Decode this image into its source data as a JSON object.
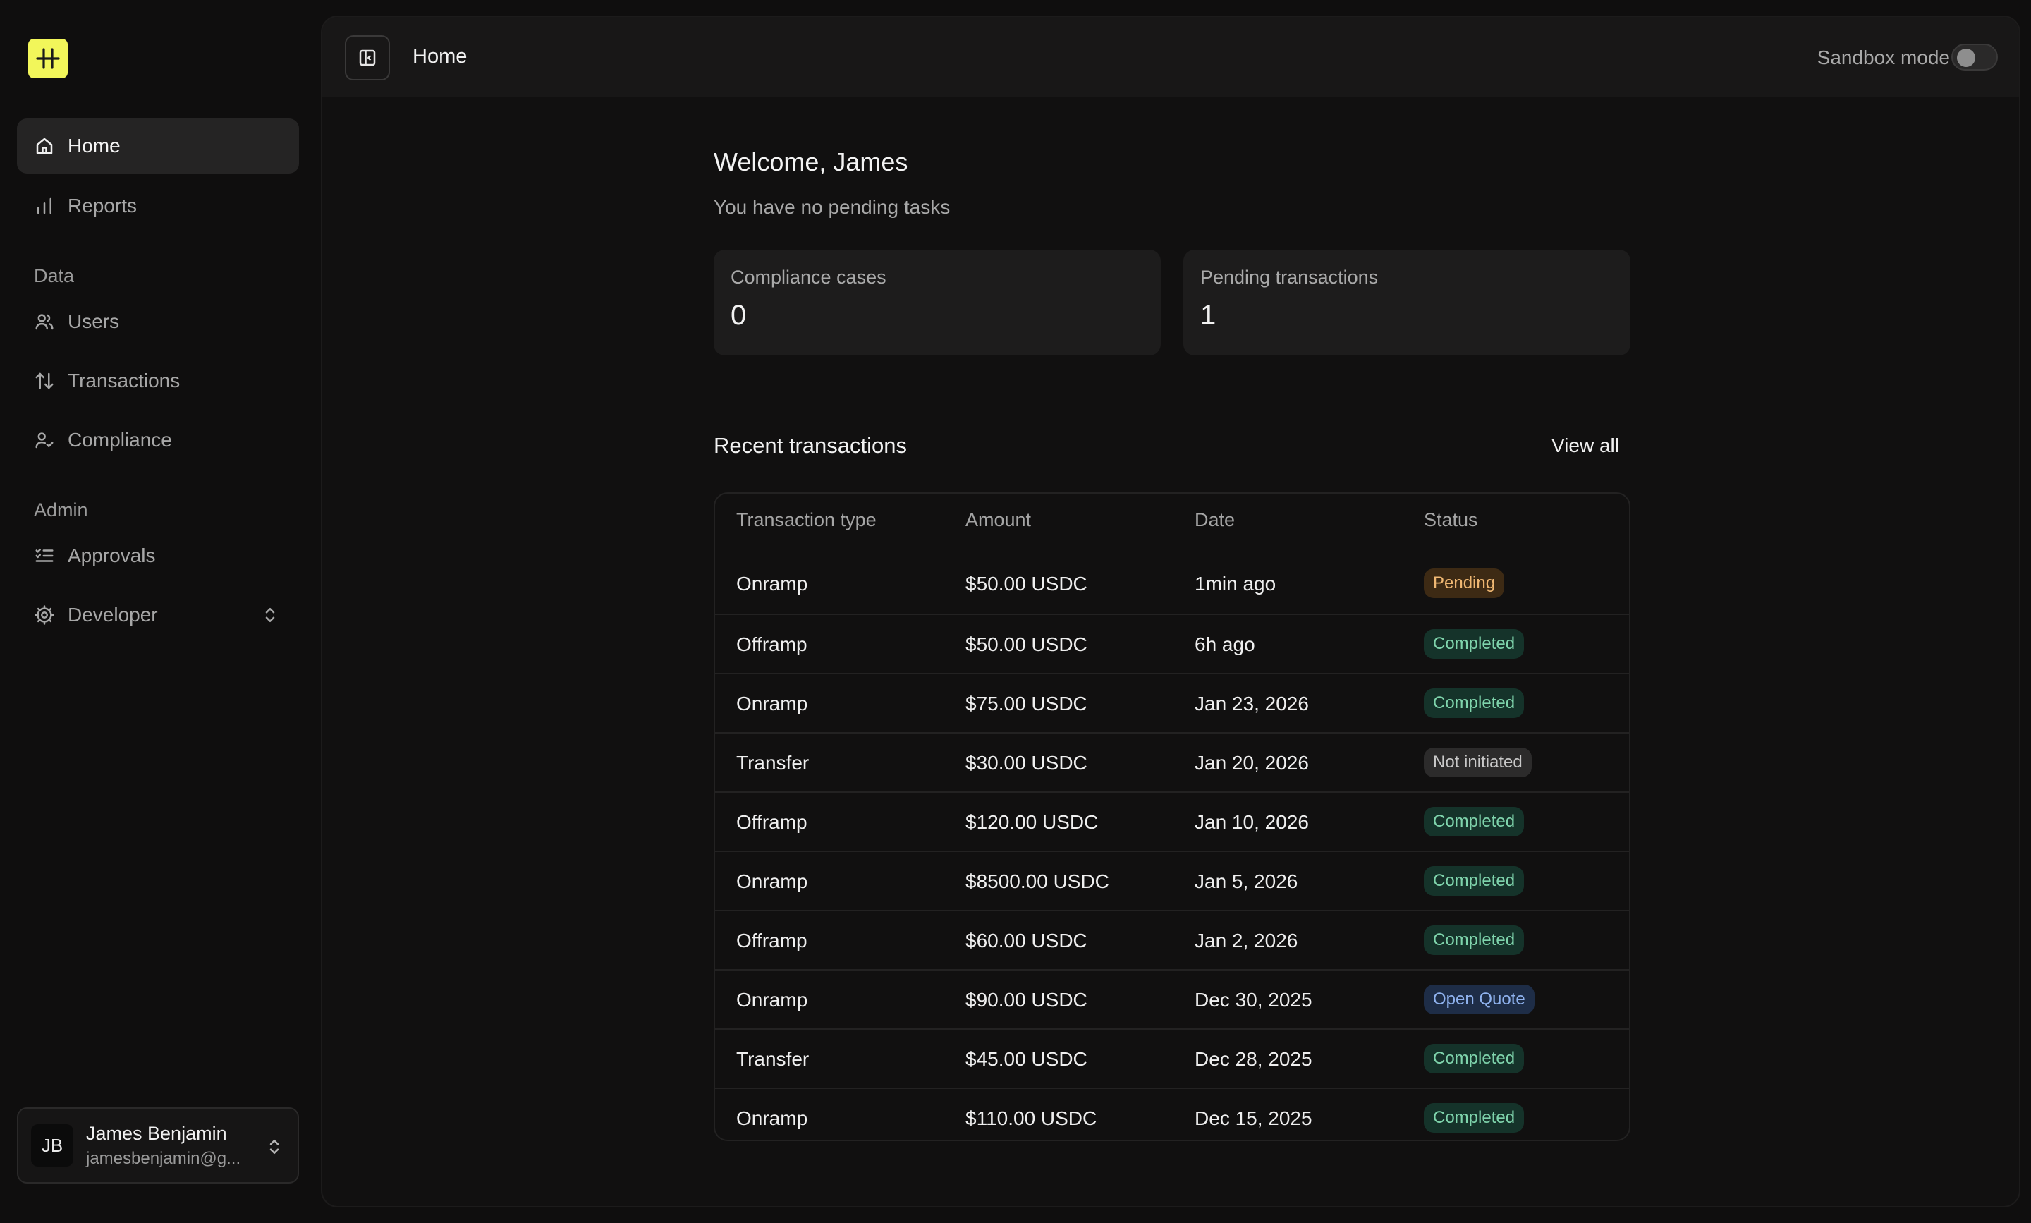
{
  "sidebar": {
    "items": [
      {
        "label": "Home"
      },
      {
        "label": "Reports"
      },
      {
        "label": "Users"
      },
      {
        "label": "Transactions"
      },
      {
        "label": "Compliance"
      },
      {
        "label": "Approvals"
      },
      {
        "label": "Developer"
      }
    ],
    "sections": {
      "data": "Data",
      "admin": "Admin"
    },
    "user": {
      "initials": "JB",
      "name": "James Benjamin",
      "email": "jamesbenjamin@g..."
    }
  },
  "header": {
    "title": "Home",
    "sandbox_label": "Sandbox mode",
    "sandbox_on": false
  },
  "main": {
    "welcome": "Welcome, James",
    "subtext": "You have no pending tasks",
    "stats": [
      {
        "label": "Compliance cases",
        "value": "0"
      },
      {
        "label": "Pending transactions",
        "value": "1"
      }
    ],
    "recent_title": "Recent transactions",
    "view_all": "View all",
    "columns": [
      "Transaction type",
      "Amount",
      "Date",
      "Status"
    ],
    "rows": [
      {
        "type": "Onramp",
        "amount": "$50.00 USDC",
        "date": "1min ago",
        "status": "Pending"
      },
      {
        "type": "Offramp",
        "amount": "$50.00 USDC",
        "date": "6h ago",
        "status": "Completed"
      },
      {
        "type": "Onramp",
        "amount": "$75.00 USDC",
        "date": "Jan 23, 2026",
        "status": "Completed"
      },
      {
        "type": "Transfer",
        "amount": "$30.00 USDC",
        "date": "Jan 20, 2026",
        "status": "Not initiated"
      },
      {
        "type": "Offramp",
        "amount": "$120.00 USDC",
        "date": "Jan 10, 2026",
        "status": "Completed"
      },
      {
        "type": "Onramp",
        "amount": "$8500.00 USDC",
        "date": "Jan 5, 2026",
        "status": "Completed"
      },
      {
        "type": "Offramp",
        "amount": "$60.00 USDC",
        "date": "Jan 2, 2026",
        "status": "Completed"
      },
      {
        "type": "Onramp",
        "amount": "$90.00 USDC",
        "date": "Dec 30, 2025",
        "status": "Open Quote"
      },
      {
        "type": "Transfer",
        "amount": "$45.00 USDC",
        "date": "Dec 28, 2025",
        "status": "Completed"
      },
      {
        "type": "Onramp",
        "amount": "$110.00 USDC",
        "date": "Dec 15, 2025",
        "status": "Completed"
      }
    ]
  },
  "colors": {
    "brand": "#f2f65a",
    "pending_bg": "#3d2a14",
    "pending_fg": "#f0b873",
    "completed_bg": "#15332a",
    "completed_fg": "#7fd4ac",
    "notinit_bg": "#2c2b2b",
    "notinit_fg": "#c9c9c9",
    "quote_bg": "#1e2d47",
    "quote_fg": "#8fb2ee"
  }
}
